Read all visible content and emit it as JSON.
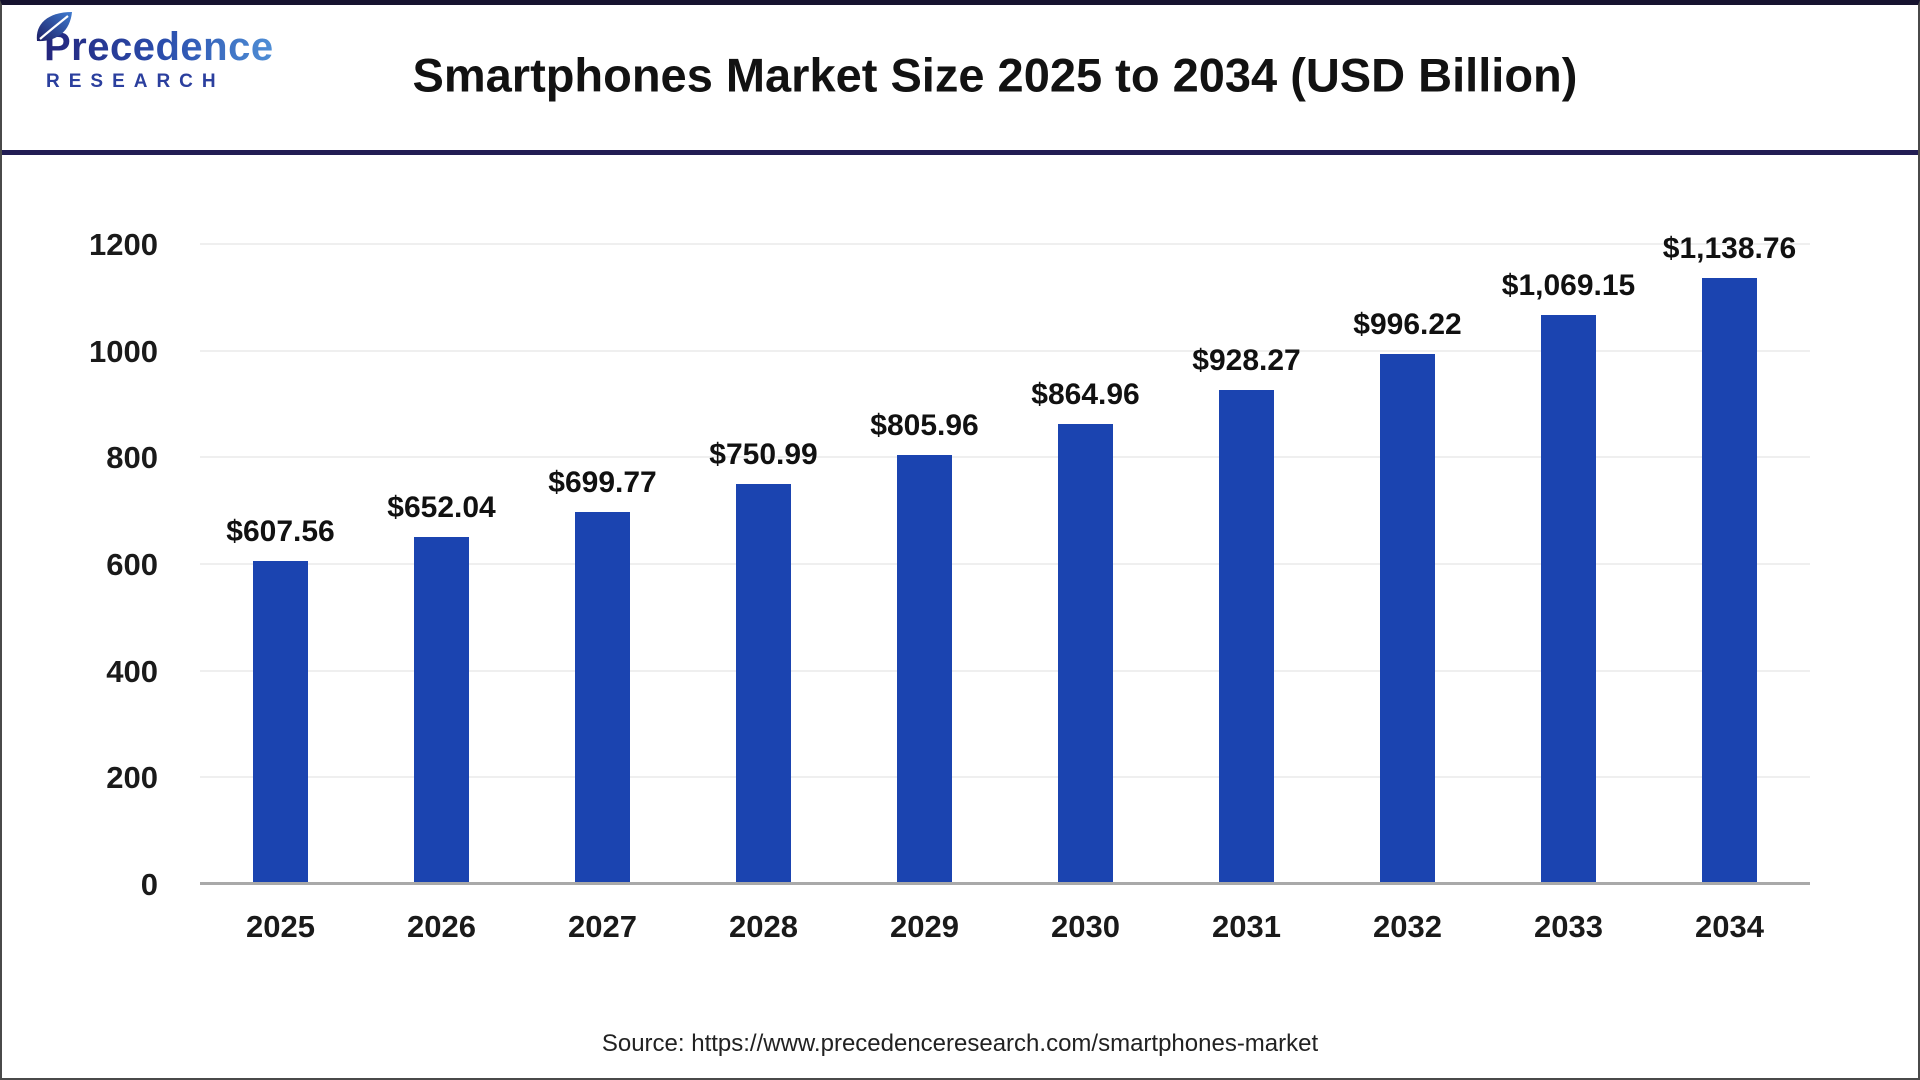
{
  "header": {
    "logo": {
      "line1": "Precedence",
      "line2": "RESEARCH"
    },
    "title": "Smartphones Market Size 2025 to 2034 (USD Billion)"
  },
  "chart_data": {
    "type": "bar",
    "title": "Smartphones Market Size 2025 to 2034 (USD Billion)",
    "categories": [
      "2025",
      "2026",
      "2027",
      "2028",
      "2029",
      "2030",
      "2031",
      "2032",
      "2033",
      "2034"
    ],
    "values": [
      607.56,
      652.04,
      699.77,
      750.99,
      805.96,
      864.96,
      928.27,
      996.22,
      1069.15,
      1138.76
    ],
    "value_labels": [
      "$607.56",
      "$652.04",
      "$699.77",
      "$750.99",
      "$805.96",
      "$864.96",
      "$928.27",
      "$996.22",
      "$1,069.15",
      "$1,138.76"
    ],
    "xlabel": "",
    "ylabel": "",
    "ylim": [
      0,
      1200
    ],
    "yticks": [
      0,
      200,
      400,
      600,
      800,
      1000,
      1200
    ],
    "grid": true,
    "legend": false,
    "bar_color": "#1b44b0",
    "gridline_color": "#efefef",
    "baseline_color": "#a9a9a9"
  },
  "footer": {
    "source": "Source: https://www.precedenceresearch.com/smartphones-market"
  }
}
